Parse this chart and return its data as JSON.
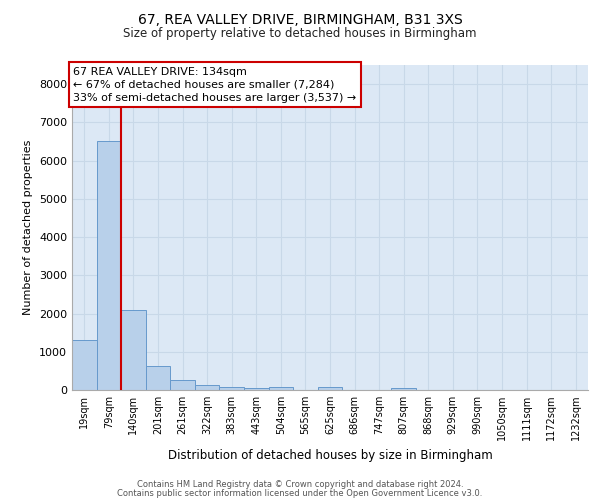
{
  "title_line1": "67, REA VALLEY DRIVE, BIRMINGHAM, B31 3XS",
  "title_line2": "Size of property relative to detached houses in Birmingham",
  "xlabel": "Distribution of detached houses by size in Birmingham",
  "ylabel": "Number of detached properties",
  "bar_labels": [
    "19sqm",
    "79sqm",
    "140sqm",
    "201sqm",
    "261sqm",
    "322sqm",
    "383sqm",
    "443sqm",
    "504sqm",
    "565sqm",
    "625sqm",
    "686sqm",
    "747sqm",
    "807sqm",
    "868sqm",
    "929sqm",
    "990sqm",
    "1050sqm",
    "1111sqm",
    "1172sqm",
    "1232sqm"
  ],
  "bar_values": [
    1300,
    6500,
    2080,
    620,
    270,
    130,
    80,
    50,
    80,
    0,
    80,
    0,
    0,
    50,
    0,
    0,
    0,
    0,
    0,
    0,
    0
  ],
  "bar_color": "#b8d0ea",
  "bar_edge_color": "#6699cc",
  "vline_x": 1.5,
  "annotation_line1": "67 REA VALLEY DRIVE: 134sqm",
  "annotation_line2": "← 67% of detached houses are smaller (7,284)",
  "annotation_line3": "33% of semi-detached houses are larger (3,537) →",
  "annotation_box_facecolor": "#ffffff",
  "annotation_box_edgecolor": "#cc0000",
  "vline_color": "#cc0000",
  "grid_color": "#c8d8e8",
  "background_color": "#dce8f5",
  "ylim": [
    0,
    8500
  ],
  "yticks": [
    0,
    1000,
    2000,
    3000,
    4000,
    5000,
    6000,
    7000,
    8000
  ],
  "footer_line1": "Contains HM Land Registry data © Crown copyright and database right 2024.",
  "footer_line2": "Contains public sector information licensed under the Open Government Licence v3.0."
}
